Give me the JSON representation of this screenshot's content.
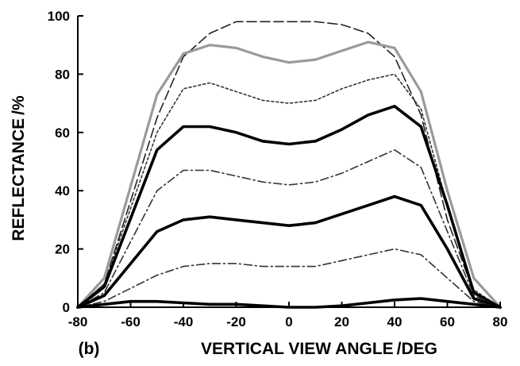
{
  "panel_label": "(b)",
  "chart_data": {
    "type": "line",
    "title": "",
    "xlabel": "VERTICAL VIEW ANGLE",
    "xlabel_unit": "DEG",
    "ylabel": "REFLECTANCE",
    "ylabel_unit": "%",
    "xlim": [
      -80,
      80
    ],
    "ylim": [
      0,
      100
    ],
    "xticks": [
      -80,
      -60,
      -40,
      -20,
      0,
      20,
      40,
      60,
      80
    ],
    "yticks": [
      0,
      20,
      40,
      60,
      80,
      100
    ],
    "grid": false,
    "legend": "none",
    "series": [
      {
        "style": "dashed-long",
        "color": "#222222",
        "x": [
          -80,
          -70,
          -50,
          -40,
          -30,
          -20,
          -10,
          0,
          10,
          20,
          30,
          40,
          50,
          60,
          70,
          80
        ],
        "y": [
          0,
          8,
          65,
          86,
          94,
          98,
          98,
          98,
          98,
          97,
          94,
          86,
          66,
          30,
          5,
          0
        ]
      },
      {
        "style": "solid-gray",
        "color": "#9a9a9a",
        "x": [
          -80,
          -70,
          -50,
          -40,
          -30,
          -20,
          -10,
          0,
          10,
          20,
          30,
          40,
          50,
          60,
          70,
          80
        ],
        "y": [
          0,
          10,
          73,
          87,
          90,
          89,
          86,
          84,
          85,
          88,
          91,
          89,
          74,
          40,
          10,
          0
        ]
      },
      {
        "style": "dotted",
        "color": "#333333",
        "x": [
          -80,
          -70,
          -50,
          -40,
          -30,
          -20,
          -10,
          0,
          10,
          20,
          30,
          40,
          50,
          60,
          70,
          80
        ],
        "y": [
          0,
          8,
          60,
          75,
          77,
          74,
          71,
          70,
          71,
          75,
          78,
          80,
          68,
          35,
          6,
          0
        ]
      },
      {
        "style": "solid-thick",
        "color": "#000000",
        "x": [
          -80,
          -70,
          -50,
          -40,
          -30,
          -20,
          -10,
          0,
          10,
          20,
          30,
          40,
          50,
          60,
          70,
          80
        ],
        "y": [
          0,
          7,
          54,
          62,
          62,
          60,
          57,
          56,
          57,
          61,
          66,
          69,
          62,
          35,
          5,
          0
        ]
      },
      {
        "style": "dash-dot",
        "color": "#333333",
        "x": [
          -80,
          -70,
          -50,
          -40,
          -30,
          -20,
          -10,
          0,
          10,
          20,
          30,
          40,
          50,
          60,
          70,
          80
        ],
        "y": [
          0,
          5,
          40,
          47,
          47,
          45,
          43,
          42,
          43,
          46,
          50,
          54,
          48,
          26,
          4,
          0
        ]
      },
      {
        "style": "solid-thick",
        "color": "#000000",
        "x": [
          -80,
          -70,
          -50,
          -40,
          -30,
          -20,
          -10,
          0,
          10,
          20,
          30,
          40,
          50,
          60,
          70,
          80
        ],
        "y": [
          0,
          4,
          26,
          30,
          31,
          30,
          29,
          28,
          29,
          32,
          35,
          38,
          35,
          20,
          3,
          0
        ]
      },
      {
        "style": "dash-dot",
        "color": "#333333",
        "x": [
          -80,
          -70,
          -50,
          -40,
          -30,
          -20,
          -10,
          0,
          10,
          20,
          30,
          40,
          50,
          60,
          70,
          80
        ],
        "y": [
          0,
          2,
          11,
          14,
          15,
          15,
          14,
          14,
          14,
          16,
          18,
          20,
          18,
          10,
          2,
          0
        ]
      },
      {
        "style": "solid-thick",
        "color": "#000000",
        "x": [
          -80,
          -70,
          -60,
          -50,
          -40,
          -30,
          -20,
          -10,
          0,
          10,
          20,
          30,
          40,
          50,
          60,
          70,
          80
        ],
        "y": [
          0,
          1,
          2,
          2,
          1.5,
          1,
          1,
          0.5,
          0,
          0,
          0.5,
          1.5,
          2.5,
          3,
          2,
          1,
          0
        ]
      }
    ]
  }
}
